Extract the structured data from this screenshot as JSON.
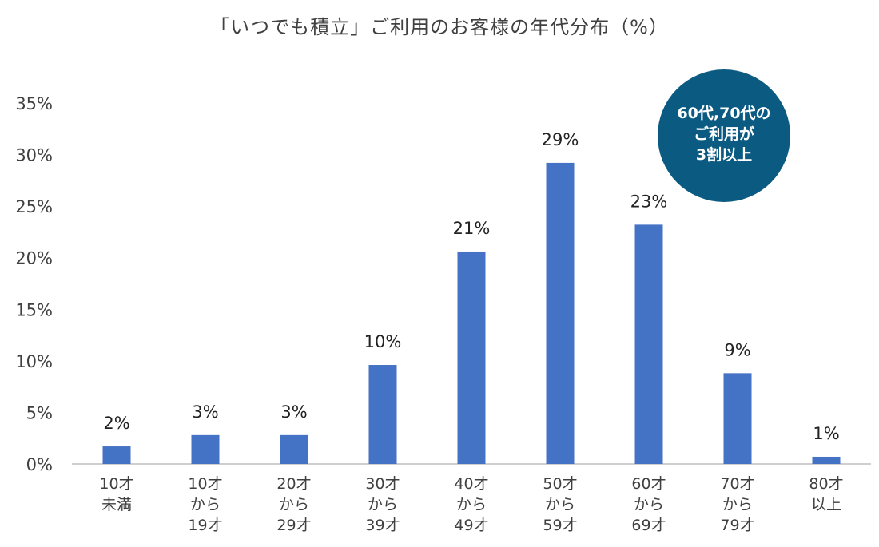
{
  "chart_data": {
    "type": "bar",
    "title": "「いつでも積立」ご利用のお客様の年代分布（%）",
    "categories": [
      [
        "10才",
        "未満"
      ],
      [
        "10才",
        "から",
        "19才"
      ],
      [
        "20才",
        "から",
        "29才"
      ],
      [
        "30才",
        "から",
        "39才"
      ],
      [
        "40才",
        "から",
        "49才"
      ],
      [
        "50才",
        "から",
        "59才"
      ],
      [
        "60才",
        "から",
        "69才"
      ],
      [
        "70才",
        "から",
        "79才"
      ],
      [
        "80才",
        "以上"
      ]
    ],
    "values": [
      1.7,
      2.8,
      2.8,
      9.6,
      20.6,
      29.2,
      23.2,
      8.8,
      0.7
    ],
    "data_labels": [
      "2%",
      "3%",
      "3%",
      "10%",
      "21%",
      "29%",
      "23%",
      "9%",
      "1%"
    ],
    "yticks": [
      "0%",
      "5%",
      "10%",
      "15%",
      "20%",
      "25%",
      "30%",
      "35%"
    ],
    "ylim": [
      0,
      35
    ],
    "grid": false,
    "bar_color": "#4472C4",
    "annotation": {
      "lines": [
        "60代,70代の",
        "ご利用が",
        "3割以上"
      ],
      "color": "#0B5A82"
    }
  }
}
